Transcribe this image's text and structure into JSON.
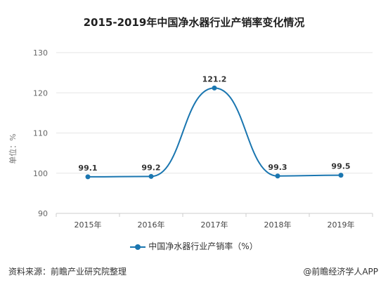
{
  "title": "2015-2019年中国净水器行业产销率变化情况",
  "ylabel": "单位：%",
  "source": "资料来源：前瞻产业研究院整理",
  "credit": "@前瞻经济学人APP",
  "colors": {
    "line": "#1a76b0",
    "grid": "#e6e6e6",
    "axis": "#cccccc"
  },
  "chart_data": {
    "type": "line",
    "title": "2015-2019年中国净水器行业产销率变化情况",
    "xlabel": "",
    "ylabel": "单位：%",
    "categories": [
      "2015年",
      "2016年",
      "2017年",
      "2018年",
      "2019年"
    ],
    "series": [
      {
        "name": "中国净水器行业产销率（%）",
        "values": [
          99.1,
          99.2,
          121.2,
          99.3,
          99.5
        ]
      }
    ],
    "ylim": [
      90,
      130
    ],
    "yticks": [
      90,
      100,
      110,
      120,
      130
    ],
    "grid": true,
    "legend": "bottom"
  }
}
